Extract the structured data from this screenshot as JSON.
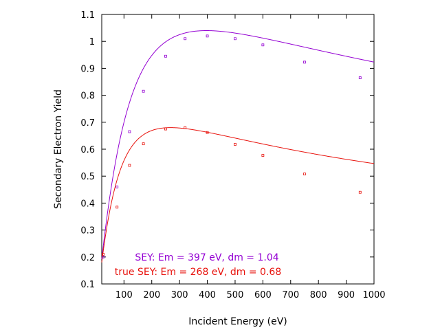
{
  "chart_data": {
    "type": "scatter",
    "xlabel": "Incident Energy (eV)",
    "ylabel": "Secondary Electron Yield",
    "xlim": [
      20,
      1000
    ],
    "ylim": [
      0.1,
      1.1
    ],
    "xticks": [
      100,
      200,
      300,
      400,
      500,
      600,
      700,
      800,
      900,
      1000
    ],
    "xtick_labels": [
      "100",
      "200",
      "300",
      "400",
      "500",
      "600",
      "700",
      "800",
      "900",
      "1000"
    ],
    "yticks": [
      0.1,
      0.2,
      0.3,
      0.4,
      0.5,
      0.6,
      0.7,
      0.8,
      0.9,
      1.0,
      1.1
    ],
    "ytick_labels": [
      "0.1",
      "0.2",
      "0.3",
      "0.4",
      "0.5",
      "0.6",
      "0.7",
      "0.8",
      "0.9",
      "1",
      "1.1"
    ],
    "grid": false,
    "legend": "none",
    "series": [
      {
        "color": "#9400d3",
        "points": [
          {
            "x": 25,
            "y": 0.2
          },
          {
            "x": 75,
            "y": 0.46
          },
          {
            "x": 120,
            "y": 0.665
          },
          {
            "x": 170,
            "y": 0.815
          },
          {
            "x": 250,
            "y": 0.945
          },
          {
            "x": 320,
            "y": 1.01
          },
          {
            "x": 400,
            "y": 1.02
          },
          {
            "x": 500,
            "y": 1.01
          },
          {
            "x": 600,
            "y": 0.987
          },
          {
            "x": 750,
            "y": 0.923
          },
          {
            "x": 950,
            "y": 0.865
          }
        ],
        "fit": {
          "Em": 397,
          "dm": 1.04
        }
      },
      {
        "color": "#e8120c",
        "points": [
          {
            "x": 25,
            "y": 0.21
          },
          {
            "x": 75,
            "y": 0.385
          },
          {
            "x": 120,
            "y": 0.54
          },
          {
            "x": 170,
            "y": 0.62
          },
          {
            "x": 250,
            "y": 0.675
          },
          {
            "x": 320,
            "y": 0.68
          },
          {
            "x": 400,
            "y": 0.662
          },
          {
            "x": 500,
            "y": 0.618
          },
          {
            "x": 600,
            "y": 0.577
          },
          {
            "x": 750,
            "y": 0.508
          },
          {
            "x": 950,
            "y": 0.44
          }
        ],
        "fit": {
          "Em": 268,
          "dm": 0.68
        }
      }
    ],
    "annotations": [
      {
        "text": "SEY: Em = 397 eV, dm = 1.04",
        "color": "#9400d3"
      },
      {
        "text": "true SEY: Em = 268 eV, dm = 0.68",
        "color": "#e8120c"
      }
    ]
  }
}
